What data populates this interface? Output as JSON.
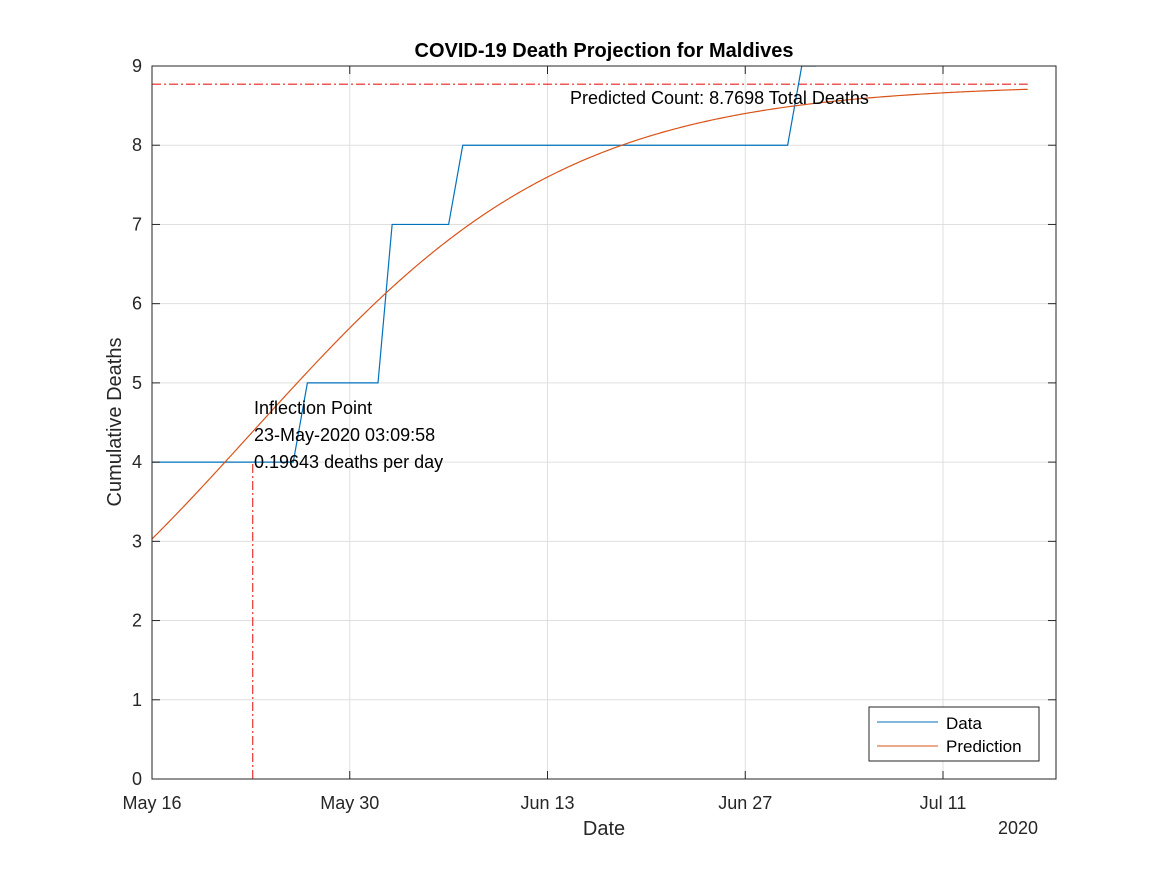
{
  "chart_data": {
    "type": "line",
    "title": "COVID-19 Death Projection for Maldives",
    "xlabel": "Date",
    "ylabel": "Cumulative Deaths",
    "x_year_label": "2020",
    "xlim": [
      "2020-05-16",
      "2020-07-19"
    ],
    "ylim": [
      0,
      9
    ],
    "yticks": [
      0,
      1,
      2,
      3,
      4,
      5,
      6,
      7,
      8,
      9
    ],
    "xticks": [
      {
        "date": "2020-05-16",
        "label": "May 16"
      },
      {
        "date": "2020-05-30",
        "label": "May 30"
      },
      {
        "date": "2020-06-13",
        "label": "Jun 13"
      },
      {
        "date": "2020-06-27",
        "label": "Jun 27"
      },
      {
        "date": "2020-07-11",
        "label": "Jul 11"
      }
    ],
    "grid": true,
    "legend_position": "bottom-right",
    "series": [
      {
        "name": "Data",
        "color": "#0072BD",
        "style": "step",
        "points": [
          [
            "2020-05-16",
            4
          ],
          [
            "2020-05-26",
            4
          ],
          [
            "2020-05-27",
            5
          ],
          [
            "2020-06-01",
            5
          ],
          [
            "2020-06-02",
            7
          ],
          [
            "2020-06-06",
            7
          ],
          [
            "2020-06-07",
            8
          ],
          [
            "2020-06-30",
            8
          ],
          [
            "2020-07-01",
            9
          ],
          [
            "2020-07-02",
            9
          ]
        ]
      },
      {
        "name": "Prediction",
        "color": "#D95319",
        "style": "logistic",
        "params": {
          "K": 8.7698,
          "inflection": "2020-05-23T03:09:58",
          "slope": 0.19643
        },
        "x_end": "2020-07-17"
      }
    ],
    "reference_lines": {
      "color": "#E8221F",
      "horizontal_y": 8.7698,
      "vertical_x": "2020-05-23T03:09:58"
    },
    "annotations": {
      "predicted": "Predicted Count: 8.7698 Total Deaths",
      "inflection_lines": [
        "Inflection Point",
        "23-May-2020 03:09:58",
        "0.19643 deaths per day"
      ]
    }
  }
}
